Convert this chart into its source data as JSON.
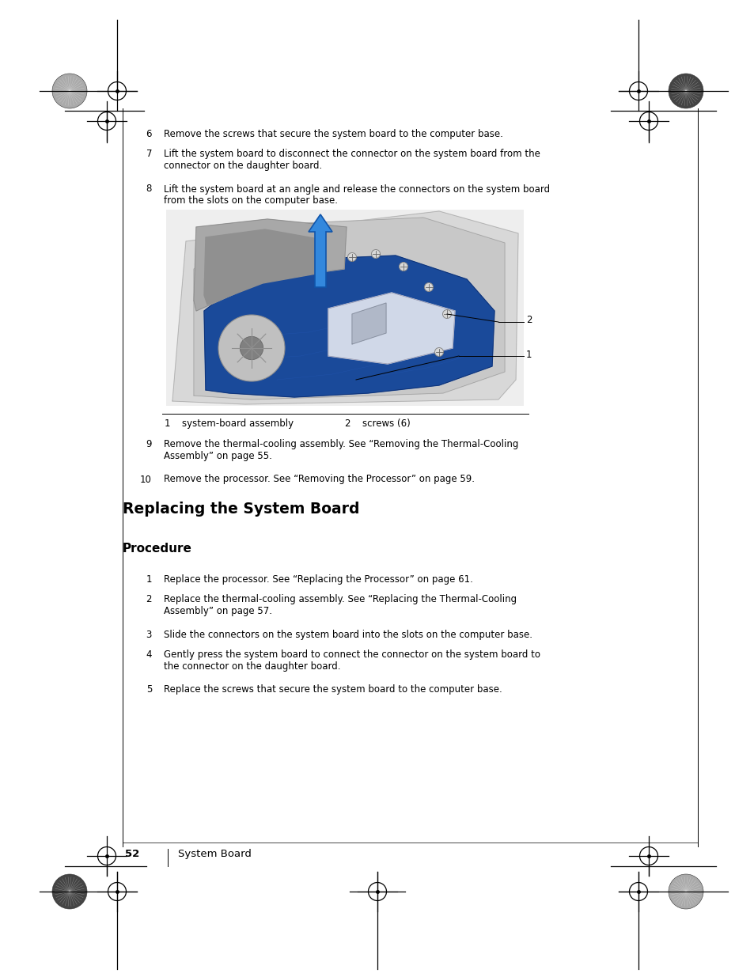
{
  "bg_color": "#ffffff",
  "page_width": 9.54,
  "page_height": 12.35,
  "content": {
    "steps_top": [
      {
        "num": "6",
        "text": "Remove the screws that secure the system board to the computer base."
      },
      {
        "num": "7",
        "text": "Lift the system board to disconnect the connector on the system board from the\nconnector on the daughter board."
      },
      {
        "num": "8",
        "text": "Lift the system board at an angle and release the connectors on the system board\nfrom the slots on the computer base."
      }
    ],
    "steps_mid": [
      {
        "num": "9",
        "text": "Remove the thermal-cooling assembly. See “Removing the Thermal-Cooling\nAssembly” on page 55."
      },
      {
        "num": "10",
        "text": "Remove the processor. See “Removing the Processor” on page 59."
      }
    ],
    "section_title": "Replacing the System Board",
    "subsection_title": "Procedure",
    "steps_bottom": [
      {
        "num": "1",
        "text": "Replace the processor. See “Replacing the Processor” on page 61."
      },
      {
        "num": "2",
        "text": "Replace the thermal-cooling assembly. See “Replacing the Thermal-Cooling\nAssembly” on page 57."
      },
      {
        "num": "3",
        "text": "Slide the connectors on the system board into the slots on the computer base."
      },
      {
        "num": "4",
        "text": "Gently press the system board to connect the connector on the system board to\nthe connector on the daughter board."
      },
      {
        "num": "5",
        "text": "Replace the screws that secure the system board to the computer base."
      }
    ],
    "caption_line1": "1   system-board assembly       2   screws (6)",
    "footer_page": "52",
    "footer_sep": "|",
    "footer_text": "System Board"
  }
}
